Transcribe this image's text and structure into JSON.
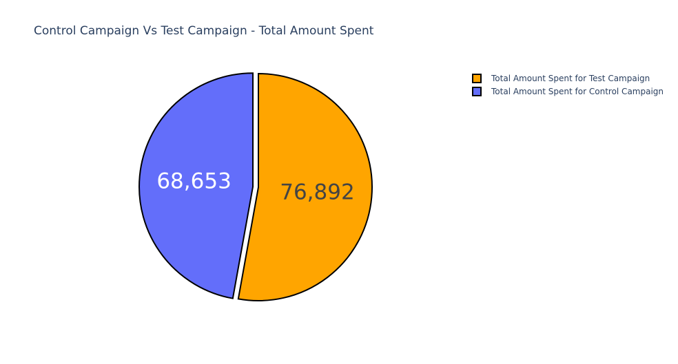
{
  "chart_data": {
    "type": "pie",
    "title": "Control Campaign Vs Test Campaign - Total Amount Spent",
    "slices": [
      {
        "name": "Total Amount Spent for Test Campaign",
        "value": 76892,
        "label": "76,892",
        "color": "#FFA500",
        "label_color": "#444444",
        "pulled": false
      },
      {
        "name": "Total Amount Spent for Control Campaign",
        "value": 68653,
        "label": "68,653",
        "color": "#636EFA",
        "label_color": "#ffffff",
        "pulled": true
      }
    ],
    "slice_outline_color": "#000000",
    "legend": {
      "placement": "top-right",
      "items": [
        "Total Amount Spent for Test Campaign",
        "Total Amount Spent for Control Campaign"
      ]
    },
    "start_angle_deg": 0,
    "direction": "clockwise"
  }
}
